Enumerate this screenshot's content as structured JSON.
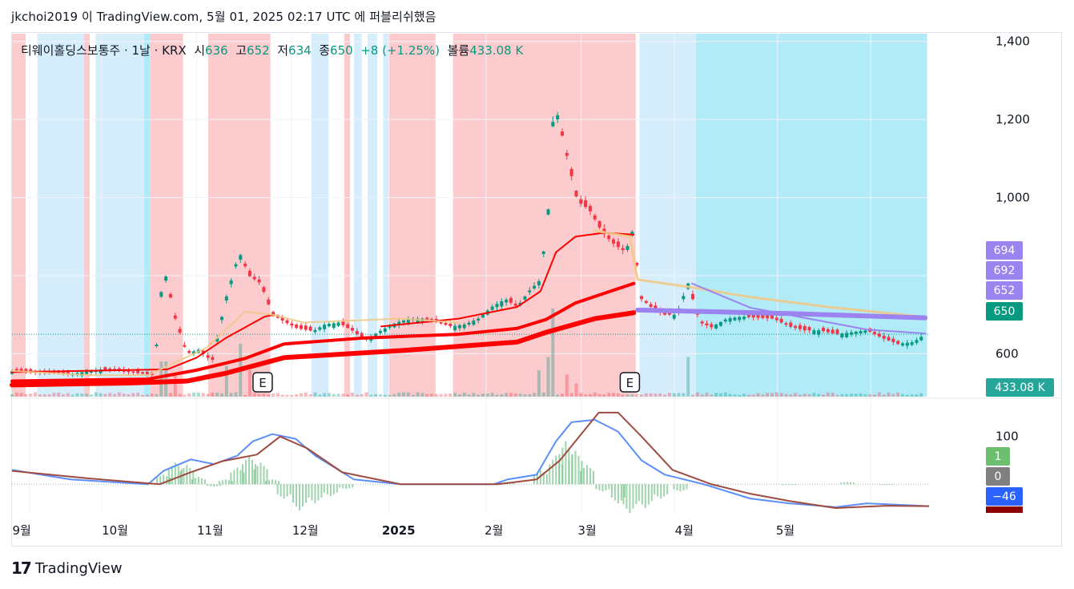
{
  "header": {
    "published": "jkchoi2019 이 TradingView.com, 5월 01, 2025 02:17 UTC 에 퍼블리쉬했음"
  },
  "legend": {
    "symbol": "티웨이홀딩스보통주 · 1날 · KRX",
    "o_label": "시",
    "o": "636",
    "h_label": "고",
    "h": "652",
    "l_label": "저",
    "l": "634",
    "c_label": "종",
    "c": "650",
    "change": "+8 (+1.25%)",
    "vol_label": "볼륨",
    "vol": "433.08 K"
  },
  "footer": {
    "brand": "TradingView",
    "logo": "17"
  },
  "colors": {
    "up": "#089981",
    "down": "#f23645",
    "band_red": "#fccbcd",
    "band_blue": "#b2ebf8",
    "band_lightblue": "#d6eefc",
    "ma_red": "#ff0000",
    "ma_tan": "#f0c987",
    "ma_purple": "#9b83f0",
    "macd": "#5b8ff9",
    "signal": "#a04b40"
  },
  "badges": {
    "p694": "694",
    "p692": "692",
    "p652": "652",
    "p650": "650",
    "vol": "433.08 K",
    "m1": "1",
    "m0": "0",
    "m46": "−46"
  },
  "chart_data": {
    "type": "candlestick",
    "price_axis": {
      "ticks": [
        "1,400",
        "1,200",
        "1,000",
        "600"
      ],
      "range": [
        490,
        1420
      ]
    },
    "time_axis": {
      "ticks": [
        "9월",
        "10월",
        "11월",
        "12월",
        "2025",
        "2월",
        "3월",
        "4월",
        "5월"
      ]
    },
    "earnings_markers": [
      "E",
      "E"
    ],
    "anchors": [
      {
        "d": 0,
        "p": 555
      },
      {
        "d": 30,
        "p": 548
      },
      {
        "d": 45,
        "p": 560
      },
      {
        "d": 60,
        "p": 553
      },
      {
        "d": 73,
        "p": 545
      },
      {
        "d": 78,
        "p": 825
      },
      {
        "d": 84,
        "p": 690
      },
      {
        "d": 90,
        "p": 600
      },
      {
        "d": 96,
        "p": 610
      },
      {
        "d": 103,
        "p": 580
      },
      {
        "d": 110,
        "p": 740
      },
      {
        "d": 117,
        "p": 860
      },
      {
        "d": 122,
        "p": 800
      },
      {
        "d": 128,
        "p": 780
      },
      {
        "d": 134,
        "p": 700
      },
      {
        "d": 141,
        "p": 680
      },
      {
        "d": 147,
        "p": 665
      },
      {
        "d": 155,
        "p": 658
      },
      {
        "d": 161,
        "p": 675
      },
      {
        "d": 168,
        "p": 680
      },
      {
        "d": 175,
        "p": 660
      },
      {
        "d": 182,
        "p": 635
      },
      {
        "d": 190,
        "p": 660
      },
      {
        "d": 198,
        "p": 680
      },
      {
        "d": 205,
        "p": 690
      },
      {
        "d": 212,
        "p": 690
      },
      {
        "d": 219,
        "p": 680
      },
      {
        "d": 226,
        "p": 670
      },
      {
        "d": 233,
        "p": 675
      },
      {
        "d": 240,
        "p": 690
      },
      {
        "d": 247,
        "p": 720
      },
      {
        "d": 254,
        "p": 740
      },
      {
        "d": 260,
        "p": 720
      },
      {
        "d": 266,
        "p": 760
      },
      {
        "d": 272,
        "p": 790
      },
      {
        "d": 276,
        "p": 970
      },
      {
        "d": 279,
        "p": 1250
      },
      {
        "d": 285,
        "p": 1120
      },
      {
        "d": 291,
        "p": 990
      },
      {
        "d": 297,
        "p": 970
      },
      {
        "d": 304,
        "p": 910
      },
      {
        "d": 310,
        "p": 880
      },
      {
        "d": 316,
        "p": 860
      },
      {
        "d": 319,
        "p": 920
      },
      {
        "d": 324,
        "p": 740
      },
      {
        "d": 330,
        "p": 715
      },
      {
        "d": 336,
        "p": 700
      },
      {
        "d": 342,
        "p": 700
      },
      {
        "d": 348,
        "p": 780
      },
      {
        "d": 354,
        "p": 680
      },
      {
        "d": 360,
        "p": 668
      },
      {
        "d": 368,
        "p": 690
      },
      {
        "d": 376,
        "p": 695
      },
      {
        "d": 384,
        "p": 692
      },
      {
        "d": 392,
        "p": 690
      },
      {
        "d": 400,
        "p": 670
      },
      {
        "d": 408,
        "p": 660
      },
      {
        "d": 416,
        "p": 660
      },
      {
        "d": 424,
        "p": 650
      },
      {
        "d": 432,
        "p": 655
      },
      {
        "d": 440,
        "p": 660
      },
      {
        "d": 448,
        "p": 640
      },
      {
        "d": 456,
        "p": 625
      },
      {
        "d": 464,
        "p": 630
      },
      {
        "d": 470,
        "p": 650
      }
    ],
    "volume_spikes": [
      {
        "d": 78,
        "v": 0.4
      },
      {
        "d": 84,
        "v": 0.25
      },
      {
        "d": 110,
        "v": 0.35
      },
      {
        "d": 117,
        "v": 0.6
      },
      {
        "d": 122,
        "v": 0.3
      },
      {
        "d": 272,
        "v": 0.3
      },
      {
        "d": 276,
        "v": 0.45
      },
      {
        "d": 279,
        "v": 1.0
      },
      {
        "d": 285,
        "v": 0.25
      },
      {
        "d": 291,
        "v": 0.15
      },
      {
        "d": 348,
        "v": 0.45
      }
    ],
    "bands": [
      {
        "from": 0,
        "to": 7,
        "c": "red"
      },
      {
        "from": 13,
        "to": 37,
        "c": "lightblue"
      },
      {
        "from": 37,
        "to": 40,
        "c": "red"
      },
      {
        "from": 43,
        "to": 68,
        "c": "lightblue"
      },
      {
        "from": 68,
        "to": 71,
        "c": "blue"
      },
      {
        "from": 71,
        "to": 88,
        "c": "red"
      },
      {
        "from": 101,
        "to": 133,
        "c": "red"
      },
      {
        "from": 154,
        "to": 163,
        "c": "lightblue"
      },
      {
        "from": 171,
        "to": 174,
        "c": "red"
      },
      {
        "from": 176,
        "to": 180,
        "c": "lightblue"
      },
      {
        "from": 183,
        "to": 188,
        "c": "lightblue"
      },
      {
        "from": 191,
        "to": 194,
        "c": "lightblue"
      },
      {
        "from": 194,
        "to": 218,
        "c": "red"
      },
      {
        "from": 227,
        "to": 318,
        "c": "red"
      },
      {
        "from": 318,
        "to": 321,
        "c": "red"
      },
      {
        "from": 323,
        "to": 352,
        "c": "lightblue"
      },
      {
        "from": 352,
        "to": 471,
        "c": "blue"
      }
    ],
    "moving_averages": [
      {
        "color": "ma_red",
        "width": 2,
        "points": [
          [
            0,
            553
          ],
          [
            80,
            560
          ],
          [
            95,
            590
          ],
          [
            110,
            640
          ],
          [
            130,
            695
          ],
          [
            135,
            700
          ]
        ]
      },
      {
        "color": "ma_red",
        "width": 2,
        "points": [
          [
            190,
            670
          ],
          [
            230,
            690
          ],
          [
            260,
            720
          ],
          [
            272,
            760
          ],
          [
            280,
            860
          ],
          [
            290,
            900
          ],
          [
            305,
            910
          ],
          [
            320,
            905
          ]
        ]
      },
      {
        "color": "ma_red",
        "width": 4,
        "points": [
          [
            0,
            530
          ],
          [
            70,
            535
          ],
          [
            95,
            558
          ],
          [
            120,
            588
          ],
          [
            140,
            625
          ],
          [
            180,
            640
          ],
          [
            230,
            650
          ],
          [
            260,
            665
          ],
          [
            275,
            688
          ],
          [
            290,
            730
          ],
          [
            320,
            780
          ]
        ]
      },
      {
        "color": "ma_red",
        "width": 6,
        "points": [
          [
            0,
            520
          ],
          [
            60,
            525
          ],
          [
            90,
            530
          ],
          [
            110,
            550
          ],
          [
            140,
            590
          ],
          [
            200,
            608
          ],
          [
            260,
            630
          ],
          [
            275,
            655
          ],
          [
            300,
            690
          ],
          [
            320,
            705
          ]
        ]
      },
      {
        "color": "ma_tan",
        "width": 2,
        "points": [
          [
            0,
            556
          ],
          [
            40,
            545
          ],
          [
            70,
            545
          ],
          [
            100,
            615
          ],
          [
            120,
            708
          ],
          [
            134,
            700
          ],
          [
            150,
            680
          ],
          [
            200,
            690
          ],
          [
            230,
            680
          ]
        ]
      },
      {
        "color": "ma_tan",
        "width": 3,
        "points": [
          [
            300,
            915
          ],
          [
            318,
            900
          ],
          [
            322,
            790
          ],
          [
            350,
            770
          ],
          [
            380,
            745
          ],
          [
            420,
            720
          ],
          [
            470,
            694
          ]
        ]
      },
      {
        "color": "ma_purple",
        "width": 2,
        "points": [
          [
            350,
            780
          ],
          [
            380,
            718
          ],
          [
            410,
            690
          ],
          [
            440,
            662
          ],
          [
            470,
            652
          ]
        ]
      },
      {
        "color": "ma_purple",
        "width": 6,
        "points": [
          [
            322,
            712
          ],
          [
            400,
            703
          ],
          [
            470,
            692
          ]
        ]
      }
    ],
    "macd": {
      "ticks": [
        "100"
      ],
      "range": [
        -60,
        175
      ],
      "macd_line": [
        [
          0,
          30
        ],
        [
          30,
          10
        ],
        [
          70,
          0
        ],
        [
          78,
          28
        ],
        [
          92,
          52
        ],
        [
          104,
          42
        ],
        [
          116,
          60
        ],
        [
          124,
          90
        ],
        [
          134,
          105
        ],
        [
          146,
          95
        ],
        [
          156,
          60
        ],
        [
          176,
          10
        ],
        [
          200,
          0
        ],
        [
          248,
          0
        ],
        [
          255,
          10
        ],
        [
          270,
          20
        ],
        [
          280,
          90
        ],
        [
          288,
          130
        ],
        [
          300,
          135
        ],
        [
          312,
          110
        ],
        [
          324,
          50
        ],
        [
          336,
          20
        ],
        [
          356,
          0
        ],
        [
          380,
          -30
        ],
        [
          400,
          -40
        ],
        [
          424,
          -48
        ],
        [
          440,
          -40
        ],
        [
          472,
          -46
        ]
      ],
      "signal_line": [
        [
          0,
          28
        ],
        [
          40,
          12
        ],
        [
          76,
          0
        ],
        [
          92,
          25
        ],
        [
          108,
          48
        ],
        [
          126,
          62
        ],
        [
          138,
          100
        ],
        [
          152,
          75
        ],
        [
          170,
          25
        ],
        [
          200,
          0
        ],
        [
          250,
          0
        ],
        [
          270,
          10
        ],
        [
          282,
          50
        ],
        [
          292,
          100
        ],
        [
          302,
          150
        ],
        [
          312,
          150
        ],
        [
          324,
          100
        ],
        [
          340,
          30
        ],
        [
          360,
          0
        ],
        [
          380,
          -20
        ],
        [
          400,
          -35
        ],
        [
          424,
          -50
        ],
        [
          450,
          -45
        ],
        [
          472,
          -46
        ]
      ],
      "histogram": [
        [
          78,
          20
        ],
        [
          84,
          45
        ],
        [
          90,
          40
        ],
        [
          96,
          15
        ],
        [
          104,
          -5
        ],
        [
          110,
          10
        ],
        [
          116,
          35
        ],
        [
          122,
          60
        ],
        [
          128,
          45
        ],
        [
          134,
          10
        ],
        [
          140,
          -30
        ],
        [
          148,
          -55
        ],
        [
          156,
          -40
        ],
        [
          164,
          -25
        ],
        [
          172,
          -10
        ],
        [
          255,
          5
        ],
        [
          272,
          30
        ],
        [
          280,
          60
        ],
        [
          285,
          90
        ],
        [
          290,
          70
        ],
        [
          296,
          40
        ],
        [
          304,
          -15
        ],
        [
          312,
          -40
        ],
        [
          318,
          -60
        ],
        [
          326,
          -50
        ],
        [
          334,
          -30
        ],
        [
          344,
          -15
        ],
        [
          360,
          -5
        ],
        [
          400,
          0
        ],
        [
          430,
          5
        ],
        [
          450,
          0
        ]
      ]
    }
  }
}
